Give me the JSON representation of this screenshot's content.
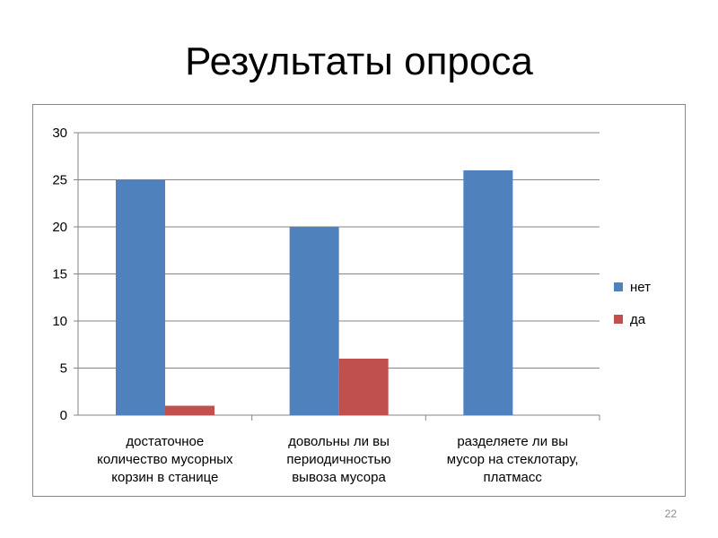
{
  "slide": {
    "title": "Результаты опроса",
    "page_number": "22"
  },
  "chart_data": {
    "type": "bar",
    "categories": [
      [
        "достаточное",
        "количество мусорных",
        "корзин в станице"
      ],
      [
        "довольны ли вы",
        "периодичностью",
        "вывоза мусора"
      ],
      [
        "разделяете ли вы",
        "мусор на стеклотару,",
        "платмасс"
      ]
    ],
    "series": [
      {
        "name": "нет",
        "values": [
          25,
          20,
          26
        ],
        "color": "#4f81bd"
      },
      {
        "name": "да",
        "values": [
          1,
          6,
          0
        ],
        "color": "#c0504d"
      }
    ],
    "ylim": [
      0,
      30
    ],
    "yticks": [
      0,
      5,
      10,
      15,
      20,
      25,
      30
    ],
    "grid": true,
    "legend_position": "right"
  }
}
